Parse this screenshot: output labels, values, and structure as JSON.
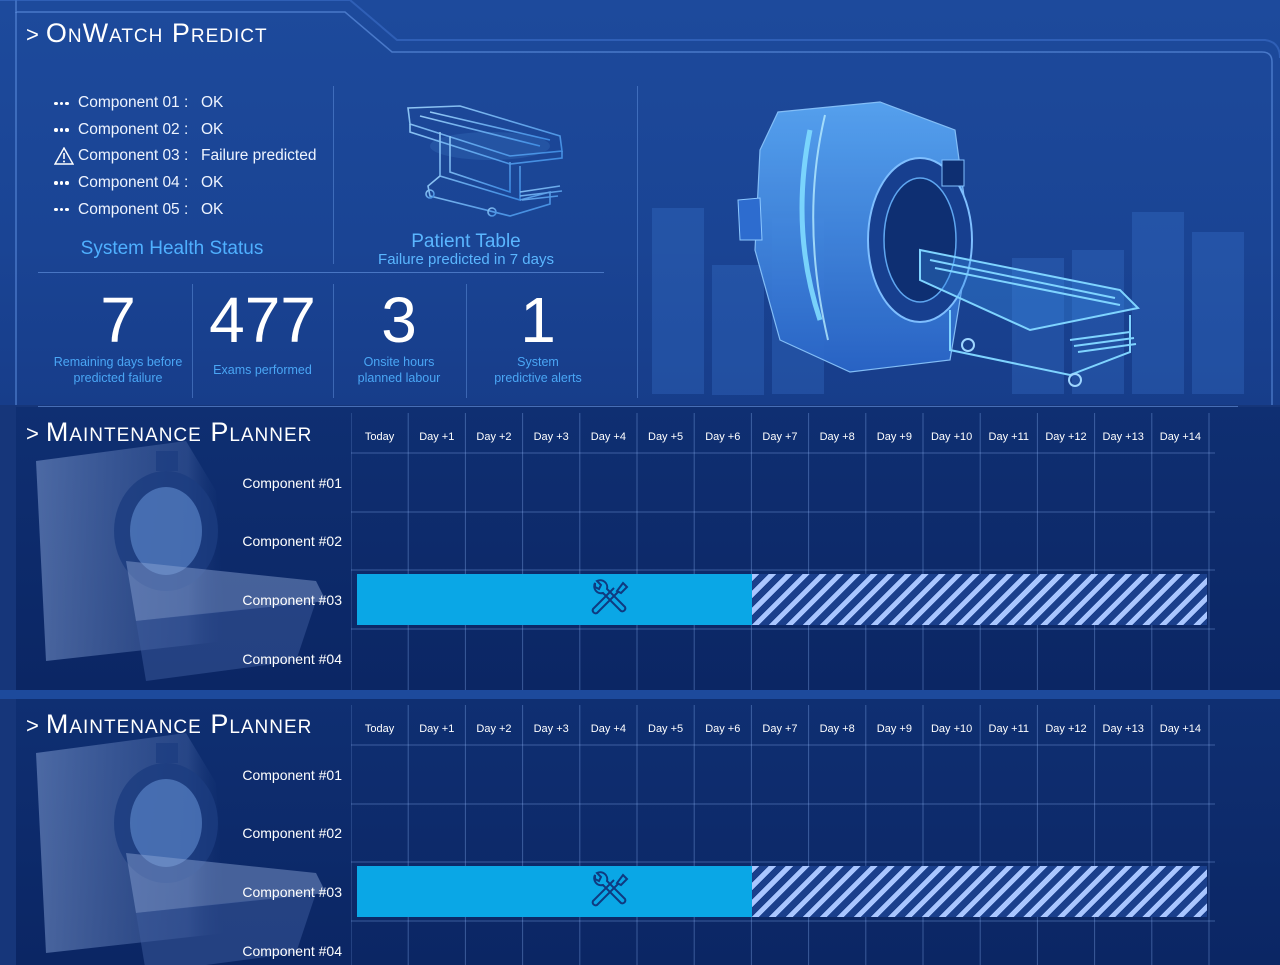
{
  "app": {
    "title": "OnWatch Predict"
  },
  "health": {
    "items": [
      {
        "name": "Component 01 :",
        "status": "OK",
        "icon": "dots-icon"
      },
      {
        "name": "Component 02 :",
        "status": "OK",
        "icon": "dots-icon"
      },
      {
        "name": "Component 03 :",
        "status": "Failure predicted",
        "icon": "warning-icon"
      },
      {
        "name": "Component 04 :",
        "status": "OK",
        "icon": "dots-icon"
      },
      {
        "name": "Component 05 :",
        "status": "OK",
        "icon": "dots-icon"
      }
    ],
    "caption": "System Health Status"
  },
  "patient_table": {
    "title": "Patient Table",
    "subtitle": "Failure predicted in 7 days"
  },
  "stats": [
    {
      "value": "7",
      "label_line1": "Remaining days before",
      "label_line2": "predicted failure"
    },
    {
      "value": "477",
      "label_line1": "Exams performed",
      "label_line2": ""
    },
    {
      "value": "3",
      "label_line1": "Onsite hours",
      "label_line2": "planned labour"
    },
    {
      "value": "1",
      "label_line1": "System",
      "label_line2": "predictive alerts"
    }
  ],
  "planners": [
    {
      "title": "Maintenance Planner",
      "days": [
        "Today",
        "Day +1",
        "Day +2",
        "Day +3",
        "Day +4",
        "Day +5",
        "Day +6",
        "Day +7",
        "Day +8",
        "Day +9",
        "Day +10",
        "Day +11",
        "Day +12",
        "Day +13",
        "Day +14"
      ],
      "components": [
        "Component #01",
        "Component #02",
        "Component #03",
        "Component #04"
      ]
    },
    {
      "title": "Maintenance Planner",
      "days": [
        "Today",
        "Day +1",
        "Day +2",
        "Day +3",
        "Day +4",
        "Day +5",
        "Day +6",
        "Day +7",
        "Day +8",
        "Day +9",
        "Day +10",
        "Day +11",
        "Day +12",
        "Day +13",
        "Day +14"
      ],
      "components": [
        "Component #01",
        "Component #02",
        "Component #03",
        "Component #04"
      ]
    }
  ],
  "schedule": {
    "component": "Component #03",
    "maintenance_window_days": [
      "Today",
      "Day +1",
      "Day +2",
      "Day +3",
      "Day +4",
      "Day +5",
      "Day +6"
    ],
    "at_risk_days": [
      "Day +7",
      "Day +8",
      "Day +9",
      "Day +10",
      "Day +11",
      "Day +12",
      "Day +13",
      "Day +14"
    ],
    "icon": "wrench-screwdriver-icon"
  },
  "colors": {
    "accent": "#4fb0ff",
    "bar": "#0aa7e6",
    "hatch": "#a9c6ff"
  }
}
